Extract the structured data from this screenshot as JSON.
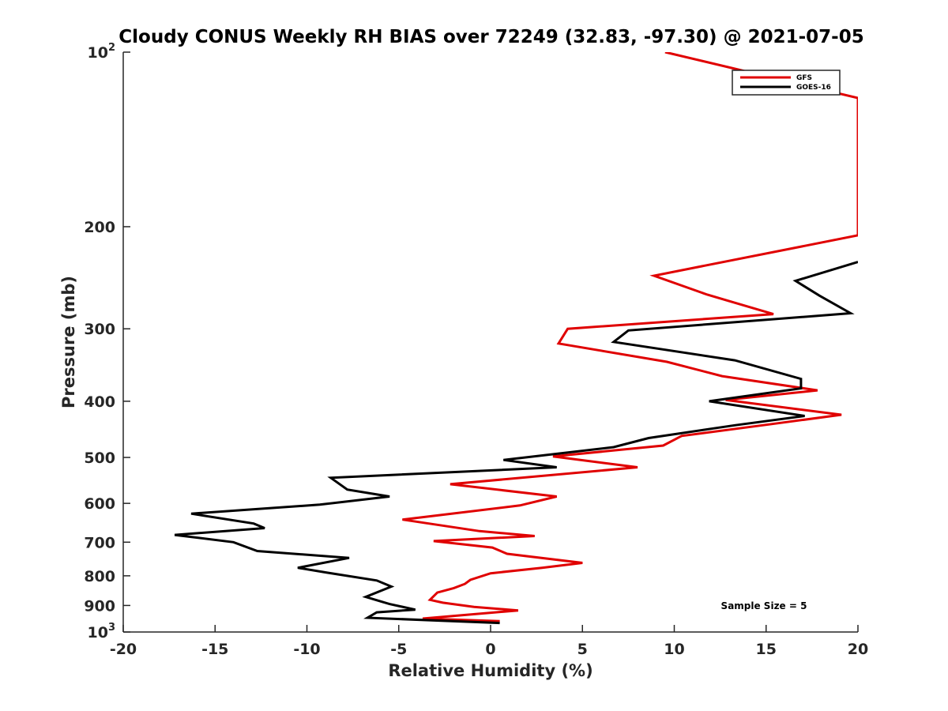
{
  "chart_data": {
    "type": "line",
    "title": "Cloudy CONUS Weekly RH BIAS over 72249 (32.83, -97.30) @ 2021-07-05",
    "xlabel": "Relative Humidity (%)",
    "ylabel": "Pressure (mb)",
    "xlim": [
      -20,
      20
    ],
    "ylim": [
      100,
      1000
    ],
    "y_scale": "log",
    "y_reversed": true,
    "grid": false,
    "legend_position": "top-right",
    "x_ticks": [
      -20,
      -15,
      -10,
      -5,
      0,
      5,
      10,
      15,
      20
    ],
    "x_tick_labels": [
      "-20",
      "-15",
      "-10",
      "-5",
      "0",
      "5",
      "10",
      "15",
      "20"
    ],
    "y_ticks": [
      {
        "value": 100,
        "base": "10",
        "sup": "2"
      },
      {
        "value": 200,
        "base": "200",
        "sup": ""
      },
      {
        "value": 300,
        "base": "300",
        "sup": ""
      },
      {
        "value": 400,
        "base": "400",
        "sup": ""
      },
      {
        "value": 500,
        "base": "500",
        "sup": ""
      },
      {
        "value": 600,
        "base": "600",
        "sup": ""
      },
      {
        "value": 700,
        "base": "700",
        "sup": ""
      },
      {
        "value": 800,
        "base": "800",
        "sup": ""
      },
      {
        "value": 900,
        "base": "900",
        "sup": ""
      },
      {
        "value": 1000,
        "base": "10",
        "sup": "3"
      }
    ],
    "series": [
      {
        "name": "GFS",
        "color": "#e00000",
        "points": [
          {
            "x": 9.5,
            "y": 100
          },
          {
            "x": 20,
            "y": 120
          },
          {
            "x": 20,
            "y": 207
          },
          {
            "x": 8.9,
            "y": 243
          },
          {
            "x": 11.8,
            "y": 262
          },
          {
            "x": 15.4,
            "y": 283
          },
          {
            "x": 4.2,
            "y": 300
          },
          {
            "x": 3.7,
            "y": 318
          },
          {
            "x": 9.6,
            "y": 342
          },
          {
            "x": 12.6,
            "y": 362
          },
          {
            "x": 17.8,
            "y": 383
          },
          {
            "x": 12.8,
            "y": 398
          },
          {
            "x": 19.1,
            "y": 422
          },
          {
            "x": 15.3,
            "y": 438
          },
          {
            "x": 10.4,
            "y": 459
          },
          {
            "x": 9.4,
            "y": 477
          },
          {
            "x": 3.4,
            "y": 498
          },
          {
            "x": 8.0,
            "y": 520
          },
          {
            "x": -2.2,
            "y": 556
          },
          {
            "x": 3.6,
            "y": 584
          },
          {
            "x": 1.6,
            "y": 605
          },
          {
            "x": -4.8,
            "y": 640
          },
          {
            "x": -0.6,
            "y": 670
          },
          {
            "x": 2.4,
            "y": 683
          },
          {
            "x": -3.1,
            "y": 697
          },
          {
            "x": 0.1,
            "y": 715
          },
          {
            "x": 0.9,
            "y": 733
          },
          {
            "x": 5.0,
            "y": 760
          },
          {
            "x": 2.8,
            "y": 775
          },
          {
            "x": 0.0,
            "y": 792
          },
          {
            "x": -1.1,
            "y": 813
          },
          {
            "x": -1.4,
            "y": 826
          },
          {
            "x": -2.0,
            "y": 840
          },
          {
            "x": -2.9,
            "y": 855
          },
          {
            "x": -3.3,
            "y": 880
          },
          {
            "x": -2.6,
            "y": 890
          },
          {
            "x": -0.9,
            "y": 905
          },
          {
            "x": 1.5,
            "y": 918
          },
          {
            "x": -3.7,
            "y": 948
          },
          {
            "x": 0.5,
            "y": 958
          }
        ]
      },
      {
        "name": "GOES-16",
        "color": "#000000",
        "points": [
          {
            "x": 20,
            "y": 230
          },
          {
            "x": 16.6,
            "y": 248
          },
          {
            "x": 17.9,
            "y": 263
          },
          {
            "x": 19.6,
            "y": 282
          },
          {
            "x": 7.5,
            "y": 302
          },
          {
            "x": 6.7,
            "y": 316
          },
          {
            "x": 13.3,
            "y": 340
          },
          {
            "x": 16.9,
            "y": 366
          },
          {
            "x": 16.9,
            "y": 380
          },
          {
            "x": 11.9,
            "y": 400
          },
          {
            "x": 17.1,
            "y": 424
          },
          {
            "x": 13.3,
            "y": 440
          },
          {
            "x": 8.6,
            "y": 463
          },
          {
            "x": 6.7,
            "y": 480
          },
          {
            "x": 0.7,
            "y": 505
          },
          {
            "x": 3.6,
            "y": 520
          },
          {
            "x": -8.7,
            "y": 542
          },
          {
            "x": -7.8,
            "y": 568
          },
          {
            "x": -5.5,
            "y": 584
          },
          {
            "x": -9.3,
            "y": 603
          },
          {
            "x": -16.3,
            "y": 625
          },
          {
            "x": -12.9,
            "y": 650
          },
          {
            "x": -12.3,
            "y": 662
          },
          {
            "x": -17.2,
            "y": 680
          },
          {
            "x": -14.0,
            "y": 700
          },
          {
            "x": -12.7,
            "y": 725
          },
          {
            "x": -7.7,
            "y": 745
          },
          {
            "x": -10.5,
            "y": 775
          },
          {
            "x": -8.9,
            "y": 790
          },
          {
            "x": -6.2,
            "y": 815
          },
          {
            "x": -5.4,
            "y": 835
          },
          {
            "x": -6.8,
            "y": 870
          },
          {
            "x": -5.5,
            "y": 895
          },
          {
            "x": -4.1,
            "y": 915
          },
          {
            "x": -6.2,
            "y": 925
          },
          {
            "x": -6.7,
            "y": 945
          },
          {
            "x": 0.5,
            "y": 965
          }
        ]
      }
    ],
    "annotations": [
      {
        "text": "Sample Size = 5"
      }
    ]
  }
}
